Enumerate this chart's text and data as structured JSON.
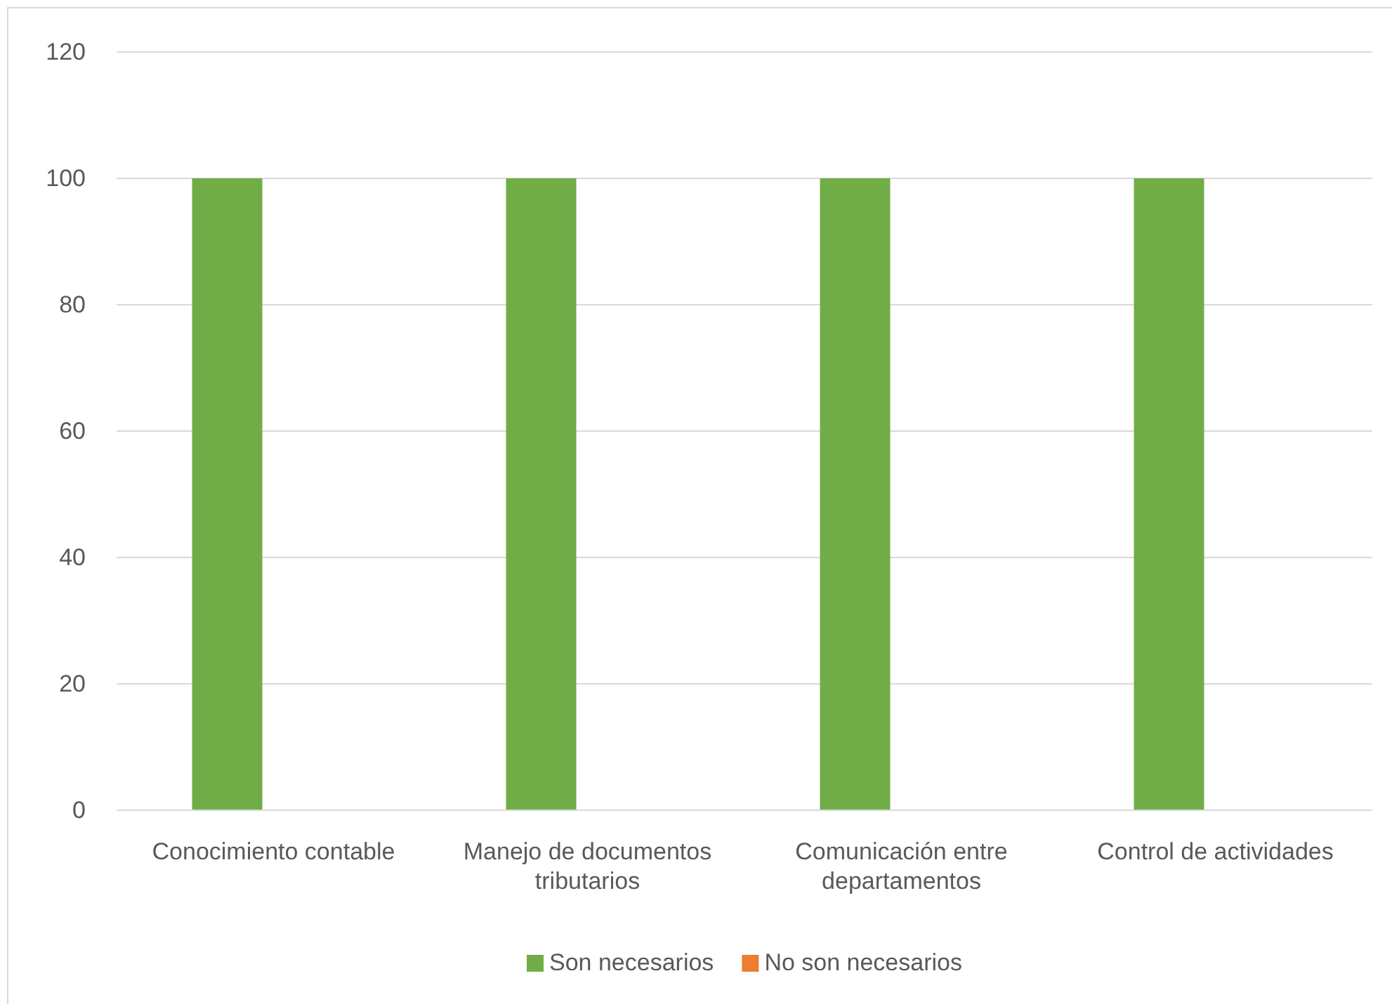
{
  "chart_data": {
    "type": "bar",
    "categories": [
      "Conocimiento contable",
      "Manejo de documentos tributarios",
      "Comunicación entre departamentos",
      "Control de actividades"
    ],
    "series": [
      {
        "name": "Son necesarios",
        "color": "#70ad47",
        "values": [
          100,
          100,
          100,
          100
        ]
      },
      {
        "name": "No son necesarios",
        "color": "#ed7d31",
        "values": [
          0,
          0,
          0,
          0
        ]
      }
    ],
    "ylim": [
      0,
      120
    ],
    "yticks": [
      0,
      20,
      40,
      60,
      80,
      100,
      120
    ],
    "grid": "y",
    "legend": "bottom"
  }
}
